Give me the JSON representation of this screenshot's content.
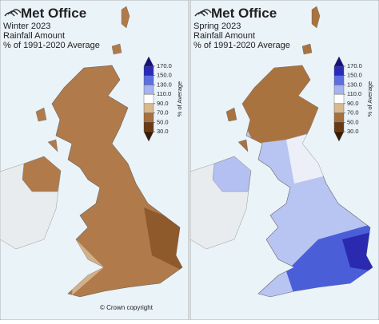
{
  "logo": "Met Office",
  "panels": [
    {
      "title": [
        "Winter 2023",
        "Rainfall Amount",
        "% of 1991-2020 Average"
      ]
    },
    {
      "title": [
        "Spring 2023",
        "Rainfall Amount",
        "% of 1991-2020 Average"
      ]
    }
  ],
  "legend": {
    "title": "% of Average",
    "ticks": [
      {
        "value": 170,
        "label": "170.0"
      },
      {
        "value": 150,
        "label": "150.0"
      },
      {
        "value": 130,
        "label": "130.0"
      },
      {
        "value": 110,
        "label": "110.0"
      },
      {
        "value": 90,
        "label": "90.0"
      },
      {
        "value": 70,
        "label": "70.0"
      },
      {
        "value": 50,
        "label": "50.0"
      },
      {
        "value": 30,
        "label": "30.0"
      }
    ],
    "colors": [
      "#2a2ab8",
      "#5c6ee0",
      "#a6b4f0",
      "#ffffff",
      "#d9b98f",
      "#a8703e",
      "#6a3a12"
    ],
    "over_color": "#12127a",
    "under_color": "#3a1c05"
  },
  "credit": "© Crown copyright"
}
